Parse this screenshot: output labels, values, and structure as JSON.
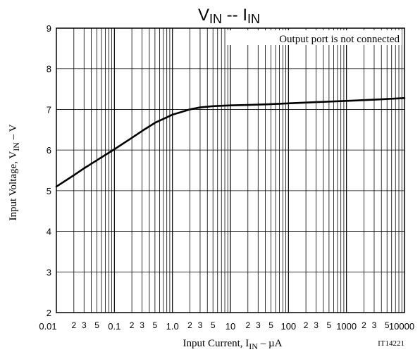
{
  "chart_data": {
    "type": "line",
    "title": {
      "main_1": "V",
      "sub_1": "IN",
      "sep": " -- ",
      "main_2": "I",
      "sub_2": "IN"
    },
    "annotation": "Output port is not connected",
    "figure_id": "IT14221",
    "xlabel": {
      "pre": "Input Current, I",
      "sub": "IN",
      "post": " – µA"
    },
    "ylabel": {
      "pre": "Input Voltage, V",
      "sub": "IN",
      "post": " – V"
    },
    "x_scale": "log",
    "xlim": [
      0.01,
      10000
    ],
    "ylim": [
      2,
      9
    ],
    "grid": true,
    "x_decade_labels": [
      "0.01",
      "0.1",
      "1.0",
      "10",
      "100",
      "1000",
      "10000"
    ],
    "x_minor_labels": [
      "2",
      "3",
      "5"
    ],
    "y_tick_labels": [
      "2",
      "3",
      "4",
      "5",
      "6",
      "7",
      "8",
      "9"
    ],
    "series": [
      {
        "x": [
          0.01,
          0.02,
          0.03,
          0.05,
          0.1,
          0.2,
          0.3,
          0.5,
          1.0,
          2,
          3,
          5,
          10,
          20,
          50,
          100,
          300,
          1000,
          3000,
          10000
        ],
        "y": [
          5.1,
          5.38,
          5.55,
          5.75,
          6.02,
          6.3,
          6.47,
          6.67,
          6.87,
          7.0,
          7.05,
          7.08,
          7.1,
          7.11,
          7.13,
          7.15,
          7.18,
          7.21,
          7.24,
          7.28
        ]
      }
    ]
  }
}
